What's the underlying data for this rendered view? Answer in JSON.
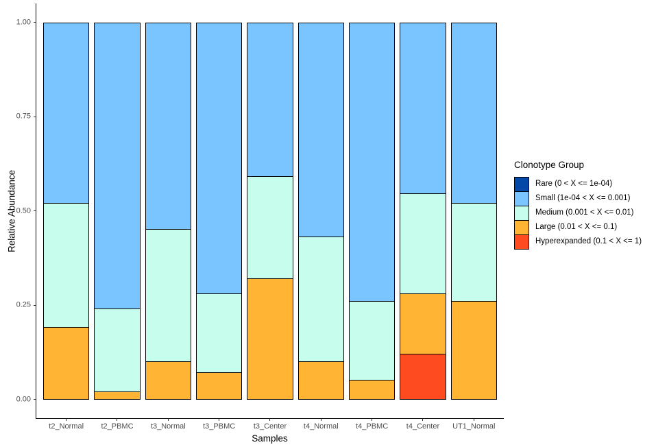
{
  "chart_data": {
    "type": "bar",
    "stacked": true,
    "orientation": "vertical",
    "xlabel": "Samples",
    "ylabel": "Relative Abundance",
    "ylim": [
      0,
      1
    ],
    "y_expansion_mult": 0.05,
    "grid": false,
    "background": "#ffffff",
    "axis_line_color": "#000000",
    "tick_color": "#333333",
    "tick_label_color": "#4d4d4d",
    "yticks": {
      "values": [
        1.0,
        0.75,
        0.5,
        0.25,
        0.0
      ],
      "labels": [
        "1.00",
        "0.75",
        "0.50",
        "0.25",
        "0.00"
      ]
    },
    "categories": [
      "t2_Normal",
      "t2_PBMC",
      "t3_Normal",
      "t3_PBMC",
      "t3_Center",
      "t4_Normal",
      "t4_PBMC",
      "t4_Center",
      "UT1_Normal"
    ],
    "series": [
      {
        "name": "Rare (0 < X <= 1e-04)",
        "color": "#0348A6",
        "values": [
          0,
          0,
          0,
          0,
          0,
          0,
          0,
          0,
          0
        ]
      },
      {
        "name": "Small (1e-04 < X <= 0.001)",
        "color": "#7AC5FF",
        "values": [
          0.48,
          0.76,
          0.55,
          0.72,
          0.41,
          0.57,
          0.74,
          0.455,
          0.48
        ]
      },
      {
        "name": "Medium (0.001 < X <= 0.01)",
        "color": "#C6FDEC",
        "values": [
          0.33,
          0.22,
          0.35,
          0.21,
          0.27,
          0.33,
          0.21,
          0.265,
          0.26
        ]
      },
      {
        "name": "Large (0.01 < X <= 0.1)",
        "color": "#FFB433",
        "values": [
          0.19,
          0.02,
          0.1,
          0.07,
          0.32,
          0.1,
          0.05,
          0.16,
          0.26
        ]
      },
      {
        "name": "Hyperexpanded (0.1 < X <= 1)",
        "color": "#FF4B20",
        "values": [
          0,
          0,
          0,
          0,
          0,
          0,
          0,
          0.12,
          0
        ]
      }
    ],
    "legend": {
      "title": "Clonotype Group",
      "position": "right",
      "entries": [
        {
          "label": "Rare (0 < X <= 1e-04)",
          "color": "#0348A6"
        },
        {
          "label": "Small (1e-04 < X <= 0.001)",
          "color": "#7AC5FF"
        },
        {
          "label": "Medium (0.001 < X <= 0.01)",
          "color": "#C6FDEC"
        },
        {
          "label": "Large (0.01 < X <= 0.1)",
          "color": "#FFB433"
        },
        {
          "label": "Hyperexpanded (0.1 < X <= 1)",
          "color": "#FF4B20"
        }
      ]
    }
  }
}
